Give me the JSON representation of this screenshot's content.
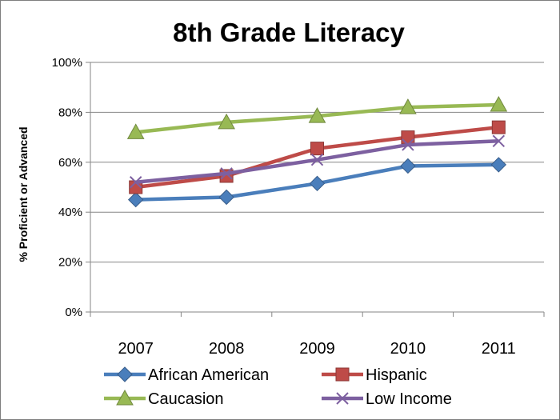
{
  "chart_data": {
    "type": "line",
    "title": "8th Grade Literacy",
    "xlabel": "",
    "ylabel": "% Proficient or Advanced",
    "categories": [
      "2007",
      "2008",
      "2009",
      "2010",
      "2011"
    ],
    "ylim": [
      0,
      100
    ],
    "yticks": [
      "0%",
      "20%",
      "40%",
      "60%",
      "80%",
      "100%"
    ],
    "grid": "horizontal",
    "legend_position": "bottom",
    "series": [
      {
        "name": "African American",
        "values": [
          45,
          46,
          51.5,
          58.5,
          59
        ],
        "color": "#4a7ebb",
        "marker": "diamond"
      },
      {
        "name": "Hispanic",
        "values": [
          50,
          54.5,
          65.5,
          70,
          74
        ],
        "color": "#be4b48",
        "marker": "square"
      },
      {
        "name": "Caucasion",
        "values": [
          72,
          76,
          78.5,
          82,
          83
        ],
        "color": "#98b954",
        "marker": "triangle"
      },
      {
        "name": "Low Income",
        "values": [
          52,
          55.5,
          61,
          67,
          68.5
        ],
        "color": "#7d60a0",
        "marker": "x"
      }
    ]
  }
}
